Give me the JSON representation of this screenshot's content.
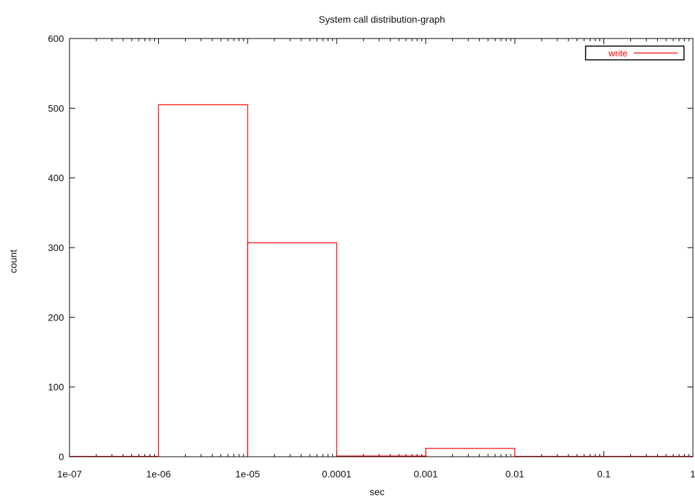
{
  "chart_data": {
    "type": "bar",
    "title": "System call distribution-graph",
    "xlabel": "sec",
    "ylabel": "count",
    "x_scale": "log",
    "xlim": [
      1e-07,
      1
    ],
    "ylim": [
      0,
      600
    ],
    "x_ticks": [
      "1e-07",
      "1e-06",
      "1e-05",
      "0.0001",
      "0.001",
      "0.01",
      "0.1",
      "1"
    ],
    "y_ticks": [
      "0",
      "100",
      "200",
      "300",
      "400",
      "500",
      "600"
    ],
    "legend_position": "top-right",
    "series": [
      {
        "name": "write",
        "color": "#ff0000",
        "bins": [
          {
            "x_start": 1e-07,
            "x_end": 1e-06,
            "count": 0
          },
          {
            "x_start": 1e-06,
            "x_end": 1e-05,
            "count": 505
          },
          {
            "x_start": 1e-05,
            "x_end": 0.0001,
            "count": 307
          },
          {
            "x_start": 0.0001,
            "x_end": 0.001,
            "count": 1
          },
          {
            "x_start": 0.001,
            "x_end": 0.01,
            "count": 12
          },
          {
            "x_start": 0.01,
            "x_end": 0.1,
            "count": 0
          },
          {
            "x_start": 0.1,
            "x_end": 1,
            "count": 0
          }
        ]
      }
    ]
  }
}
